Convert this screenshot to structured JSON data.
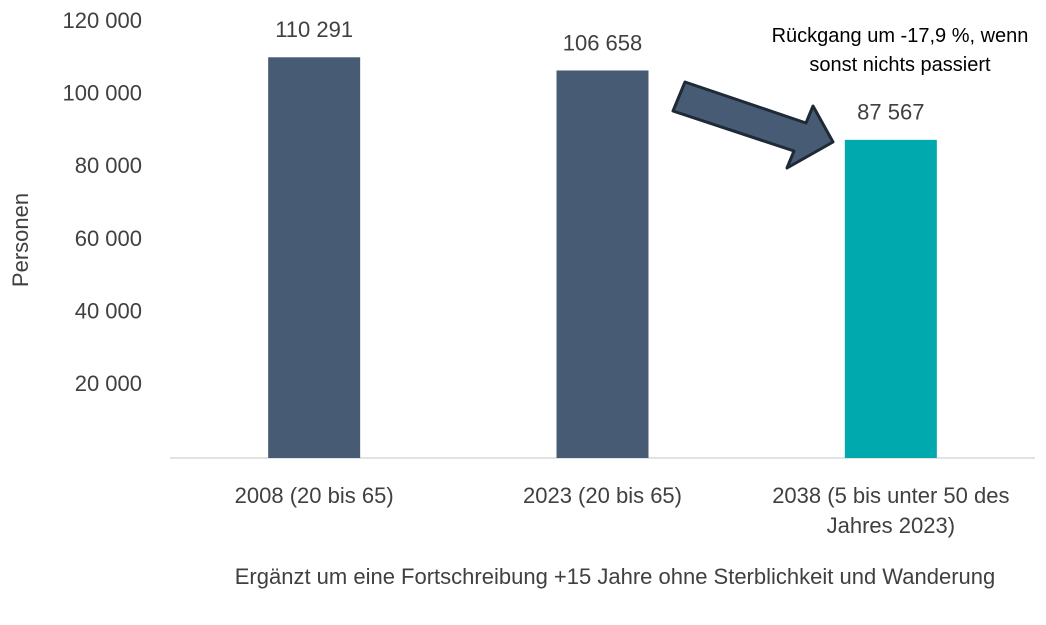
{
  "chart_data": {
    "type": "bar",
    "categories": [
      "2008 (20 bis 65)",
      "2023 (20 bis 65)",
      "2038 (5 bis unter 50 des Jahres 2023)"
    ],
    "values": [
      110291,
      106658,
      87567
    ],
    "value_labels": [
      "110 291",
      "106 658",
      "87 567"
    ],
    "colors": [
      "#475c74",
      "#475c74",
      "#00a9ad"
    ],
    "ylim": [
      0,
      120000
    ],
    "yticks": [
      {
        "value": 20000,
        "label": "20 000"
      },
      {
        "value": 40000,
        "label": "40 000"
      },
      {
        "value": 60000,
        "label": "60 000"
      },
      {
        "value": 80000,
        "label": "80 000"
      },
      {
        "value": 100000,
        "label": "100 000"
      },
      {
        "value": 120000,
        "label": "120 000"
      }
    ],
    "ylabel": "Personen",
    "xlabel": "Ergänzt um eine Fortschreibung +15 Jahre ohne Sterblichkeit und Wanderung",
    "annotation": "Rückgang um -17,9 %, wenn sonst nichts passiert",
    "grid": false
  }
}
